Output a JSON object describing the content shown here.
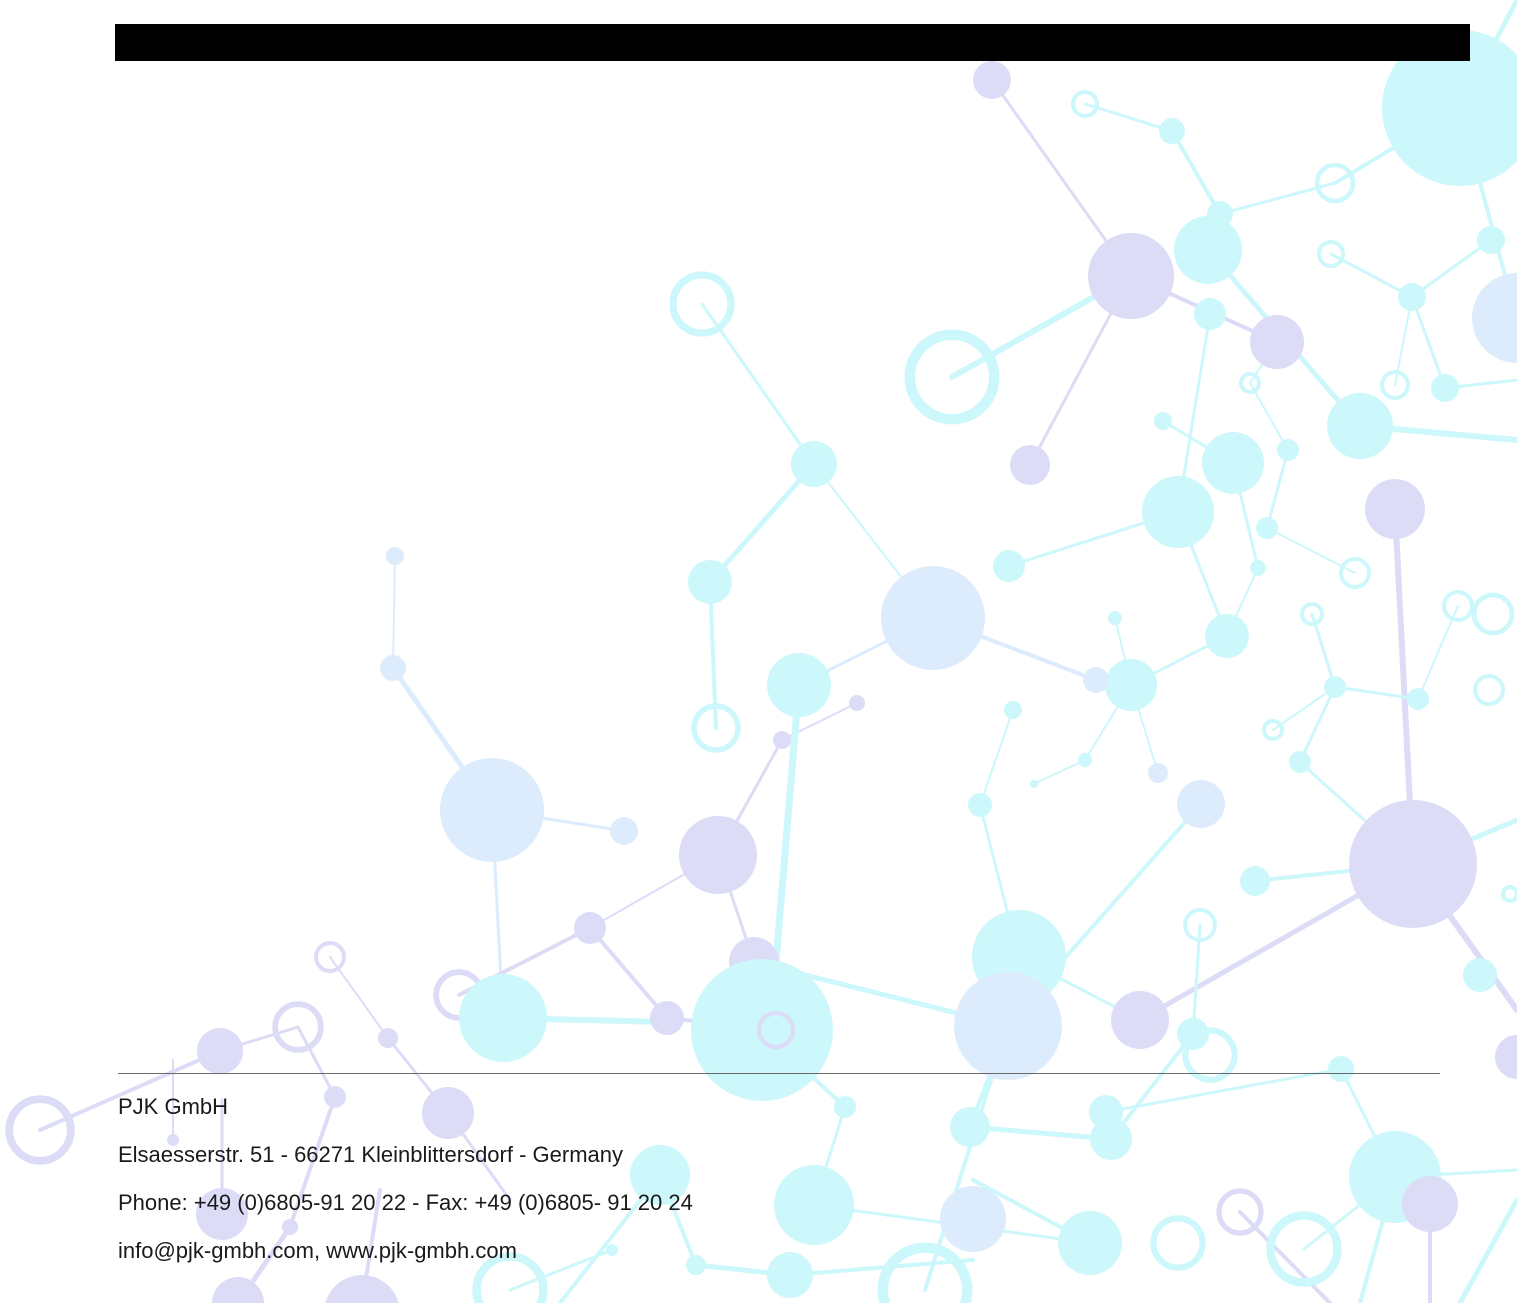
{
  "page": {
    "colors": {
      "cyan": "#ccf7fb",
      "light_blue": "#ddecfc",
      "lavender": "#dcdcf7",
      "top_bar": "#000000",
      "text": "#1a1a1a"
    }
  },
  "footer": {
    "company": "PJK GmbH",
    "address": "Elsaesserstr. 51 - 66271 Kleinblittersdorf - Germany",
    "contact": "Phone: +49 (0)6805-91 20 22 - Fax: +49 (0)6805- 91 20 24",
    "web": "info@pjk-gmbh.com, www.pjk-gmbh.com"
  }
}
